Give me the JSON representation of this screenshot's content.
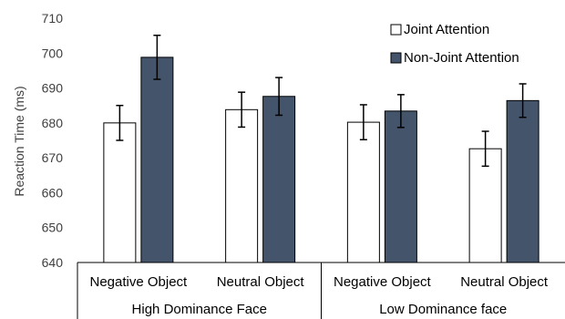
{
  "chart_data": {
    "type": "bar",
    "title": "",
    "ylabel": "Reaction Time (ms)",
    "ylim": [
      640,
      710
    ],
    "yticks": [
      640,
      650,
      660,
      670,
      680,
      690,
      700,
      710
    ],
    "grid": false,
    "legend_position": "top-right",
    "categories": [
      "Negative Object",
      "Neutral Object",
      "Negative Object",
      "Neutral Object"
    ],
    "groups": [
      {
        "label": "High Dominance Face",
        "categories": [
          0,
          1
        ]
      },
      {
        "label": "Low Dominance face",
        "categories": [
          2,
          3
        ]
      }
    ],
    "series": [
      {
        "name": "Joint Attention",
        "color": "#ffffff",
        "values": [
          680.0,
          683.8,
          680.2,
          672.6
        ],
        "error": [
          5.0,
          5.0,
          5.0,
          5.0
        ]
      },
      {
        "name": "Non-Joint Attention",
        "color": "#44546a",
        "values": [
          698.8,
          687.6,
          683.4,
          686.4
        ],
        "error": [
          6.3,
          5.4,
          4.7,
          4.8
        ]
      }
    ]
  }
}
